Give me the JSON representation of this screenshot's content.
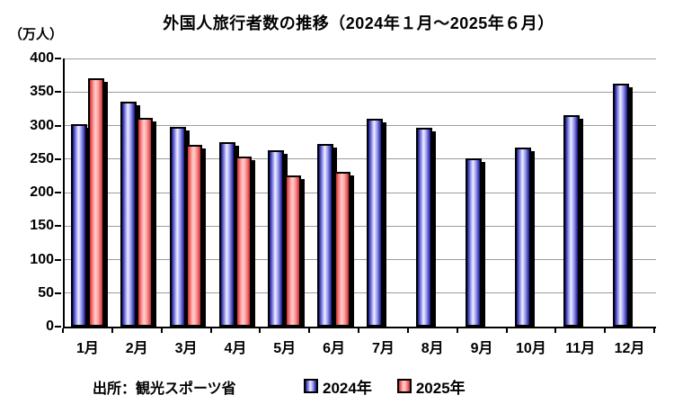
{
  "title": "外国人旅行者数の推移（2024年１月～2025年６月）",
  "y_unit_label": "（万人）",
  "source_label": "出所：観光スポーツ省",
  "legend": {
    "items": [
      {
        "label": "2024年",
        "color": "#9b9bf0"
      },
      {
        "label": "2025年",
        "color": "#ff9a9a"
      }
    ]
  },
  "colors": {
    "series_2024_dark": "#16168f",
    "series_2024_mid": "#9b9bf0",
    "series_2024_light": "#efefff",
    "series_2025_dark": "#cf2f2f",
    "series_2025_mid": "#ff9a9a",
    "series_2025_light": "#ffd0d0",
    "gridline": "#9c9c9c",
    "axis": "#000000"
  },
  "chart_data": {
    "type": "bar",
    "title": "外国人旅行者数の推移（2024年１月～2025年６月）",
    "xlabel": "",
    "ylabel": "（万人）",
    "categories": [
      "1月",
      "2月",
      "3月",
      "4月",
      "5月",
      "6月",
      "7月",
      "8月",
      "9月",
      "10月",
      "11月",
      "12月"
    ],
    "series": [
      {
        "name": "2024年",
        "colors": {
          "dark": "#16168f",
          "mid": "#9b9bf0",
          "light": "#efefff"
        },
        "values": [
          302,
          335,
          298,
          275,
          263,
          273,
          310,
          296,
          251,
          267,
          315,
          362
        ]
      },
      {
        "name": "2025年",
        "colors": {
          "dark": "#cf2f2f",
          "mid": "#ff9a9a",
          "light": "#ffd0d0"
        },
        "values": [
          371,
          311,
          271,
          254,
          226,
          231,
          null,
          null,
          null,
          null,
          null,
          null
        ]
      }
    ],
    "ylim": [
      0,
      400
    ],
    "ytick_step": 50,
    "grid": true,
    "legend_position": "bottom"
  }
}
